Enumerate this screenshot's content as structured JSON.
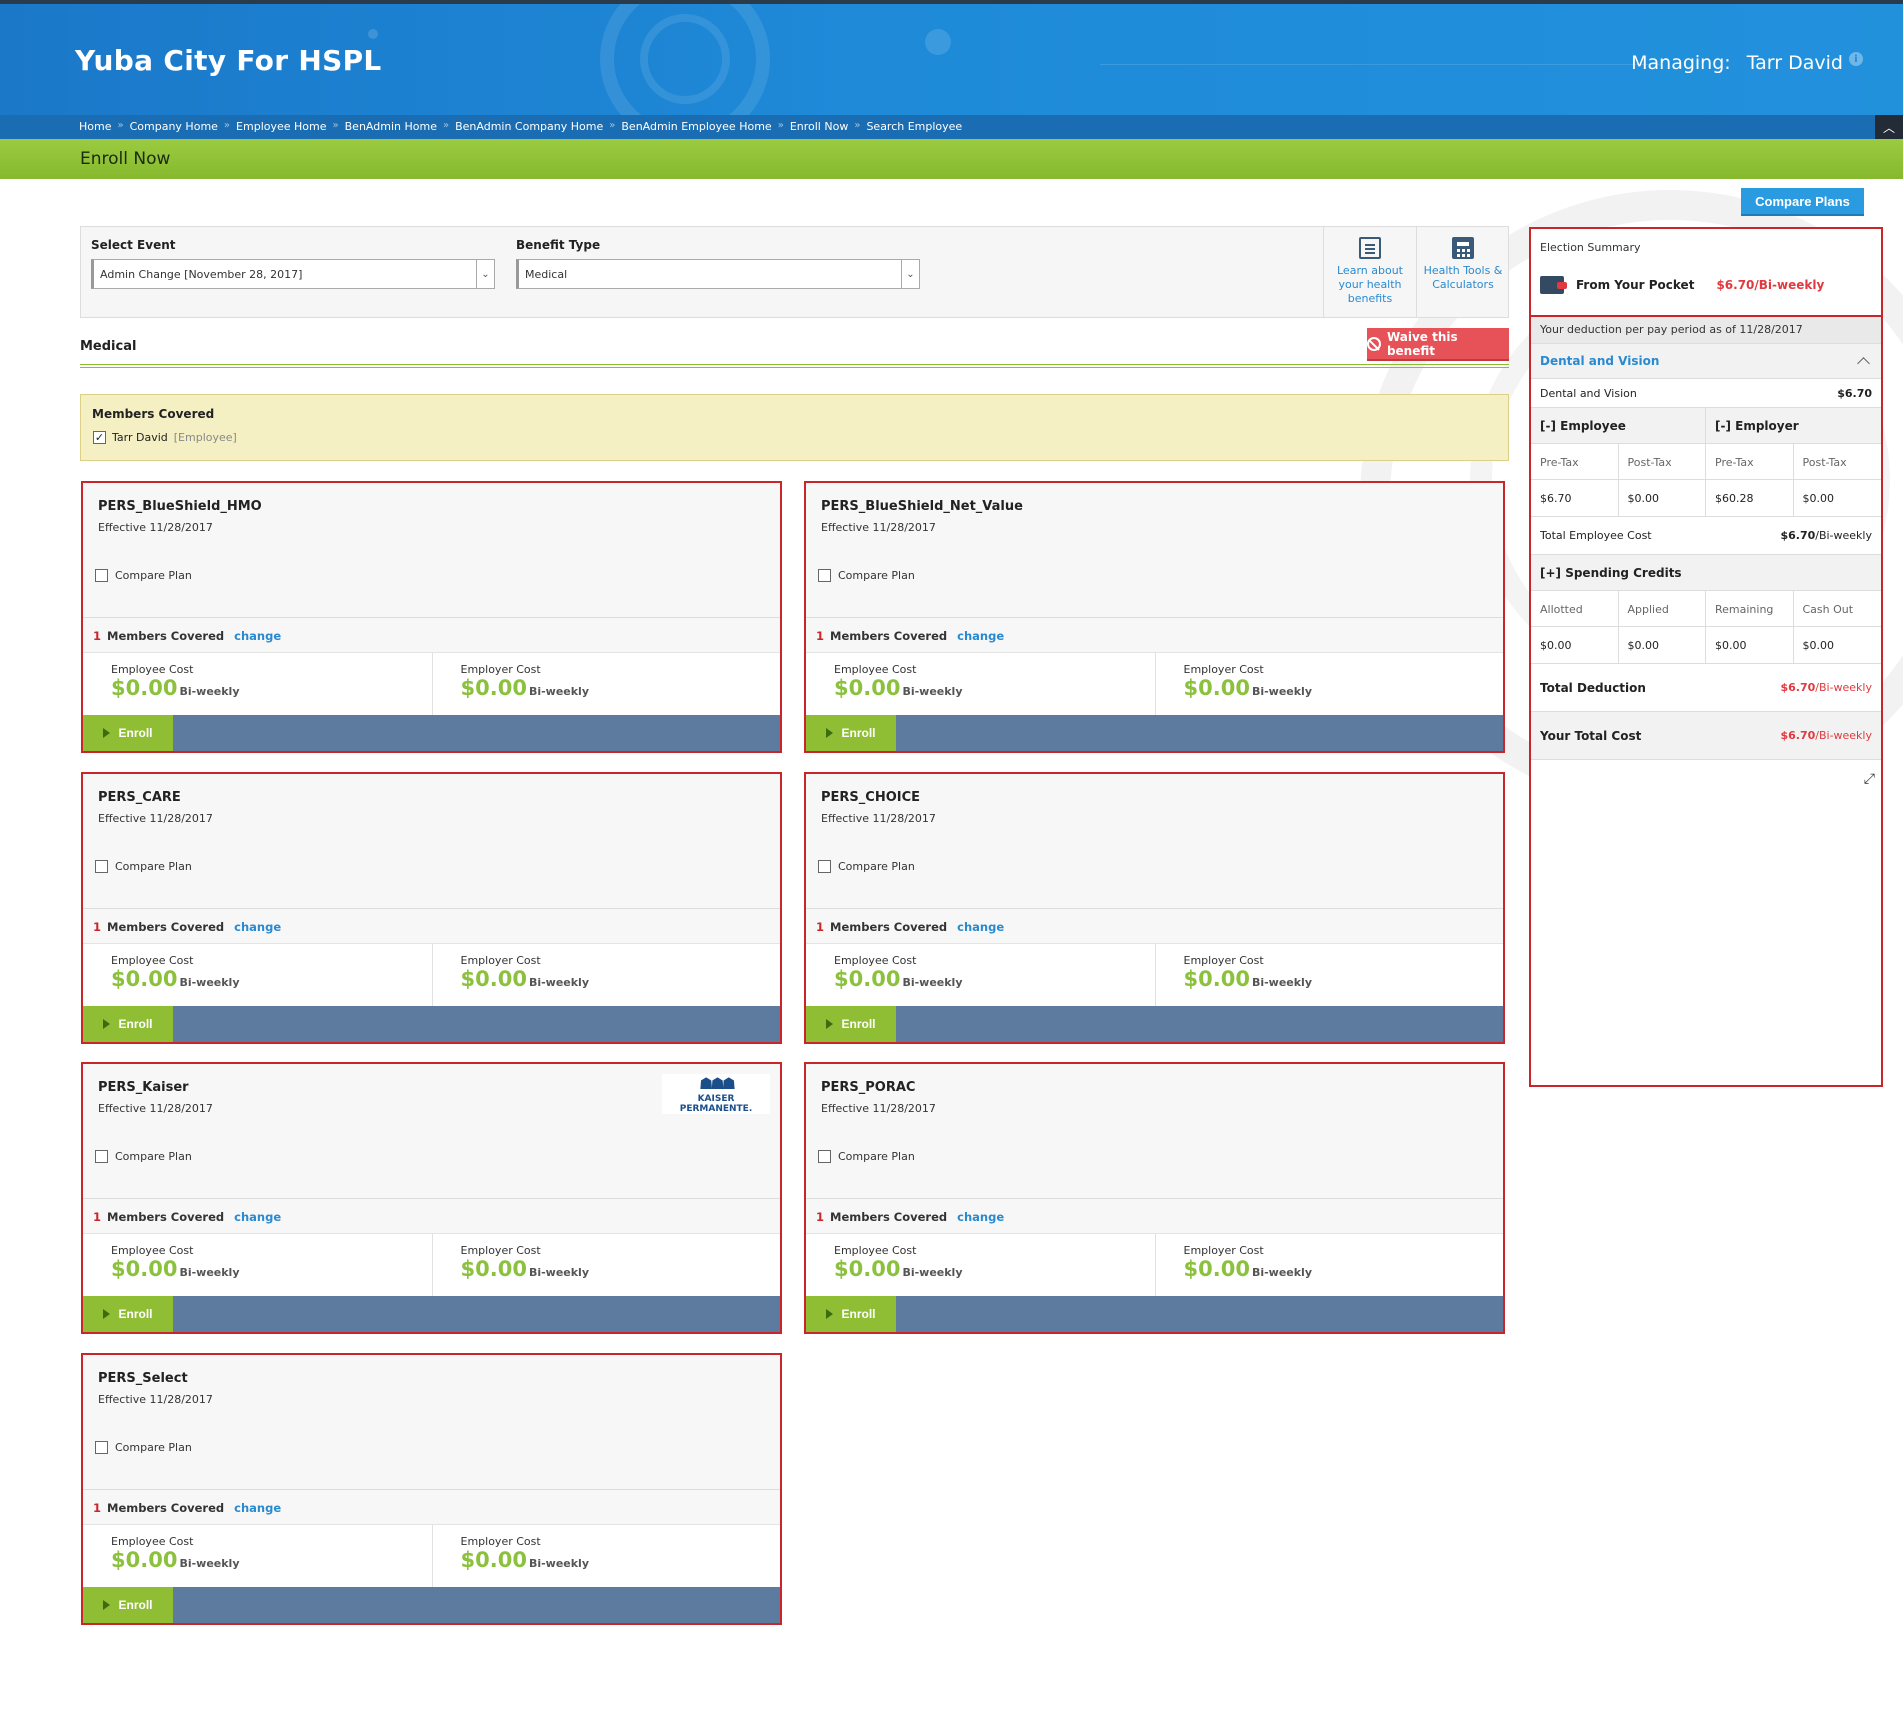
{
  "header": {
    "app_title": "Yuba City For HSPL",
    "managing_label": "Managing:",
    "managing_name": "Tarr David"
  },
  "breadcrumbs": [
    "Home",
    "Company Home",
    "Employee Home",
    "BenAdmin Home",
    "BenAdmin Company Home",
    "BenAdmin Employee Home",
    "Enroll Now",
    "Search Employee"
  ],
  "page_title": "Enroll Now",
  "compare_plans_label": "Compare Plans",
  "filters": {
    "event_label": "Select Event",
    "event_value": "Admin Change [November 28, 2017]",
    "benefit_label": "Benefit Type",
    "benefit_value": "Medical",
    "learn_label": "Learn about your health benefits",
    "tools_label": "Health Tools & Calculators"
  },
  "section_title": "Medical",
  "waive_label": "Waive this benefit",
  "members": {
    "title": "Members Covered",
    "member_name": "Tarr David",
    "member_role": "[Employee]"
  },
  "plan_common": {
    "compare_label": "Compare Plan",
    "members_count": "1",
    "members_label": "Members Covered",
    "change_label": "change",
    "employee_cost_label": "Employee Cost",
    "employer_cost_label": "Employer Cost",
    "period": "Bi-weekly",
    "enroll_label": "Enroll"
  },
  "plans": [
    {
      "name": "PERS_BlueShield_HMO",
      "effective": "Effective 11/28/2017",
      "employee_cost": "$0.00",
      "employer_cost": "$0.00"
    },
    {
      "name": "PERS_BlueShield_Net_Value",
      "effective": "Effective 11/28/2017",
      "employee_cost": "$0.00",
      "employer_cost": "$0.00"
    },
    {
      "name": "PERS_CARE",
      "effective": "Effective 11/28/2017",
      "employee_cost": "$0.00",
      "employer_cost": "$0.00"
    },
    {
      "name": "PERS_CHOICE",
      "effective": "Effective 11/28/2017",
      "employee_cost": "$0.00",
      "employer_cost": "$0.00"
    },
    {
      "name": "PERS_Kaiser",
      "effective": "Effective 11/28/2017",
      "employee_cost": "$0.00",
      "employer_cost": "$0.00",
      "logo_text": "KAISER PERMANENTE."
    },
    {
      "name": "PERS_PORAC",
      "effective": "Effective 11/28/2017",
      "employee_cost": "$0.00",
      "employer_cost": "$0.00"
    },
    {
      "name": "PERS_Select",
      "effective": "Effective 11/28/2017",
      "employee_cost": "$0.00",
      "employer_cost": "$0.00"
    }
  ],
  "summary": {
    "title": "Election Summary",
    "pocket_label": "From Your Pocket",
    "pocket_value": "$6.70/Bi-weekly",
    "as_of": "Your deduction per pay period as of 11/28/2017",
    "section": "Dental and Vision",
    "line_label": "Dental and Vision",
    "line_value": "$6.70",
    "employee_header": "[-] Employee",
    "employer_header": "[-] Employer",
    "cols": [
      "Pre-Tax",
      "Post-Tax",
      "Pre-Tax",
      "Post-Tax"
    ],
    "vals": [
      "$6.70",
      "$0.00",
      "$60.28",
      "$0.00"
    ],
    "total_emp_label": "Total Employee Cost",
    "total_emp_value": "$6.70",
    "total_emp_period": "/Bi-weekly",
    "credits_header": "[+] Spending Credits",
    "credit_cols": [
      "Allotted",
      "Applied",
      "Remaining",
      "Cash Out"
    ],
    "credit_vals": [
      "$0.00",
      "$0.00",
      "$0.00",
      "$0.00"
    ],
    "total_deduction_label": "Total Deduction",
    "total_deduction_value": "$6.70",
    "total_deduction_period": "/Bi-weekly",
    "your_total_label": "Your Total Cost",
    "your_total_value": "$6.70",
    "your_total_period": "/Bi-weekly"
  },
  "colors": {
    "accent_blue": "#1e8ad8",
    "green": "#8fbe35",
    "red": "#c9262c"
  }
}
